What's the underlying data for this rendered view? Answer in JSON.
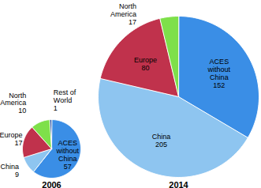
{
  "chart_data": [
    {
      "type": "pie",
      "title": "2006",
      "categories": [
        "ACES without China",
        "China",
        "Europe",
        "North America",
        "Rest of World"
      ],
      "values": [
        57,
        9,
        17,
        10,
        1
      ],
      "colors": [
        "#3a8ee6",
        "#8ec5f0",
        "#c0324c",
        "#7ee04a",
        "#1f4e9c"
      ],
      "data_labels": true
    },
    {
      "type": "pie",
      "title": "2014",
      "categories": [
        "ACES without China",
        "China",
        "Europe",
        "North America"
      ],
      "values": [
        152,
        205,
        80,
        17
      ],
      "colors": [
        "#3a8ee6",
        "#8ec5f0",
        "#c0324c",
        "#7ee04a"
      ],
      "data_labels": true
    }
  ]
}
